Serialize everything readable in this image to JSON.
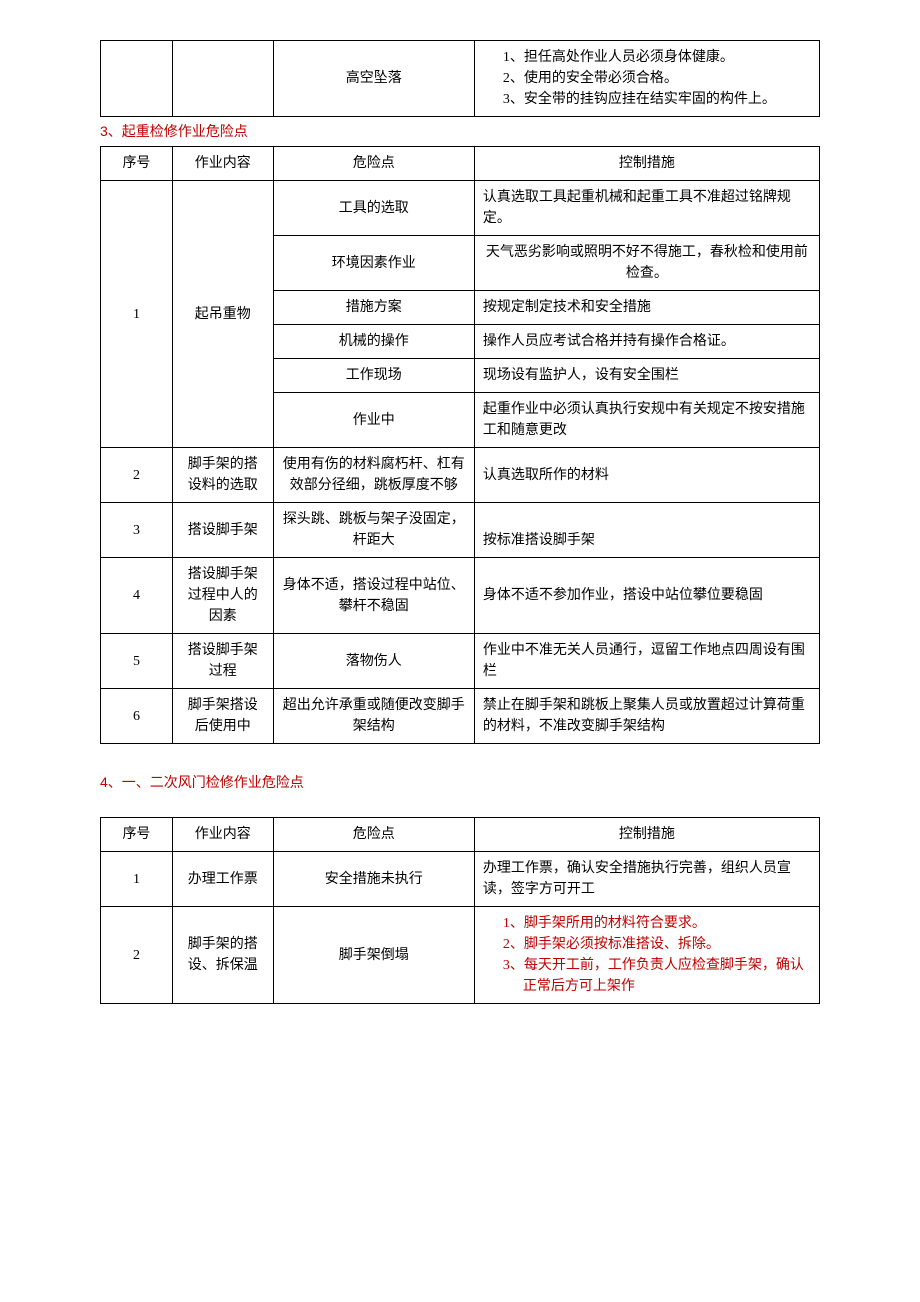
{
  "table1": {
    "risk": "高空坠落",
    "measures": [
      "担任高处作业人员必须身体健康。",
      "使用的安全带必须合格。",
      "安全带的挂钩应挂在结实牢固的构件上。"
    ]
  },
  "section3": {
    "title": "3、起重检修作业危险点",
    "headers": [
      "序号",
      "作业内容",
      "危险点",
      "控制措施"
    ],
    "row1": {
      "idx": "1",
      "work": "起吊重物",
      "risks": [
        {
          "risk": "工具的选取",
          "ctrl": "认真选取工具起重机械和起重工具不准超过铭牌规定。"
        },
        {
          "risk": "环境因素作业",
          "ctrl": "天气恶劣影响或照明不好不得施工，春秋检和使用前检查。"
        },
        {
          "risk": "措施方案",
          "ctrl": "按规定制定技术和安全措施"
        },
        {
          "risk": "机械的操作",
          "ctrl": "操作人员应考试合格并持有操作合格证。"
        },
        {
          "risk": "工作现场",
          "ctrl": "现场设有监护人，设有安全围栏"
        },
        {
          "risk": "作业中",
          "ctrl": "起重作业中必须认真执行安规中有关规定不按安措施工和随意更改"
        }
      ]
    },
    "row2": {
      "idx": "2",
      "work": "脚手架的搭设料的选取",
      "risk": "使用有伤的材料腐朽杆、杠有效部分径细，跳板厚度不够",
      "ctrl": "认真选取所作的材料"
    },
    "row3": {
      "idx": "3",
      "work": "搭设脚手架",
      "risk": "探头跳、跳板与架子没固定，杆距大",
      "ctrl": "按标准搭设脚手架"
    },
    "row4": {
      "idx": "4",
      "work": "搭设脚手架过程中人的因素",
      "risk": "身体不适，搭设过程中站位、攀杆不稳固",
      "ctrl": "身体不适不参加作业，搭设中站位攀位要稳固"
    },
    "row5": {
      "idx": "5",
      "work": "搭设脚手架过程",
      "risk": "落物伤人",
      "ctrl": "作业中不准无关人员通行，逗留工作地点四周设有围栏"
    },
    "row6": {
      "idx": "6",
      "work": "脚手架搭设后使用中",
      "risk": "超出允许承重或随便改变脚手架结构",
      "ctrl": "禁止在脚手架和跳板上聚集人员或放置超过计算荷重的材料，不准改变脚手架结构"
    }
  },
  "section4": {
    "title": "4、一、二次风门检修作业危险点",
    "headers": [
      "序号",
      "作业内容",
      "危险点",
      "控制措施"
    ],
    "row1": {
      "idx": "1",
      "work": "办理工作票",
      "risk": "安全措施未执行",
      "ctrl": "办理工作票，确认安全措施执行完善，组织人员宣读，签字方可开工"
    },
    "row2": {
      "idx": "2",
      "work": "脚手架的搭设、拆保温",
      "risk": "脚手架倒塌",
      "measures": [
        "脚手架所用的材料符合要求。",
        "脚手架必须按标准搭设、拆除。",
        "每天开工前，工作负责人应检查脚手架，确认正常后方可上架作"
      ]
    }
  }
}
